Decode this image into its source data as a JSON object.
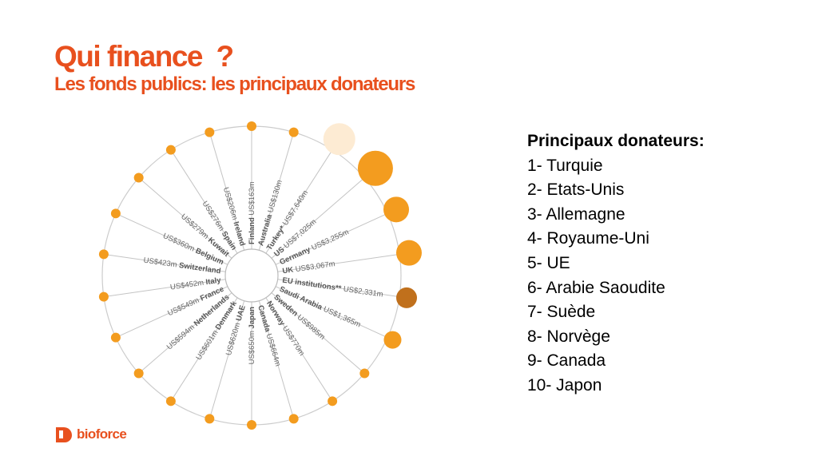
{
  "slide": {
    "title": "Qui finance  ?",
    "subtitle": "Les fonds publics: les principaux donateurs"
  },
  "colors": {
    "accent": "#e8501e",
    "bubble": "#f39c1f",
    "bubble_light": "#fdebd3",
    "bubble_dark": "#c0701c",
    "ring": "#cccccc"
  },
  "wheel": {
    "spokes": [
      {
        "amount": "US$163m",
        "name": "Finland"
      },
      {
        "amount": "US$130m",
        "name": "Australia"
      },
      {
        "amount": "US$7,640m",
        "name": "Turkey*"
      },
      {
        "amount": "US$7,025m",
        "name": "US"
      },
      {
        "amount": "US$3,255m",
        "name": "Germany"
      },
      {
        "amount": "US$3,067m",
        "name": "UK"
      },
      {
        "amount": "US$2,331m",
        "name": "EU institutions**"
      },
      {
        "amount": "US$1,365m",
        "name": "Saudi Arabia"
      },
      {
        "amount": "US$985m",
        "name": "Sweden"
      },
      {
        "amount": "US$770m",
        "name": "Norway"
      },
      {
        "amount": "US$664m",
        "name": "Canada"
      },
      {
        "amount": "US$650m",
        "name": "Japan"
      },
      {
        "amount": "US$620m",
        "name": "UAE"
      },
      {
        "amount": "US$601m",
        "name": "Denmark"
      },
      {
        "amount": "US$594m",
        "name": "Netherlands"
      },
      {
        "amount": "US$549m",
        "name": "France"
      },
      {
        "amount": "US$452m",
        "name": "Italy"
      },
      {
        "amount": "US$423m",
        "name": "Switzerland"
      },
      {
        "amount": "US$360m",
        "name": "Belgium"
      },
      {
        "amount": "US$279m",
        "name": "Kuwait"
      },
      {
        "amount": "US$276m",
        "name": "Spain"
      },
      {
        "amount": "US$206m",
        "name": "Ireland"
      }
    ]
  },
  "donors": {
    "title": "Principaux donateurs:",
    "items": [
      "1- Turquie",
      "2- Etats-Unis",
      "3- Allemagne",
      "4- Royaume-Uni",
      "5- UE",
      "6- Arabie Saoudite",
      "7- Suède",
      "8- Norvège",
      "9- Canada",
      "10- Japon"
    ]
  },
  "logo": {
    "text": "bioforce",
    "icon": "bioforce-logo-icon"
  }
}
